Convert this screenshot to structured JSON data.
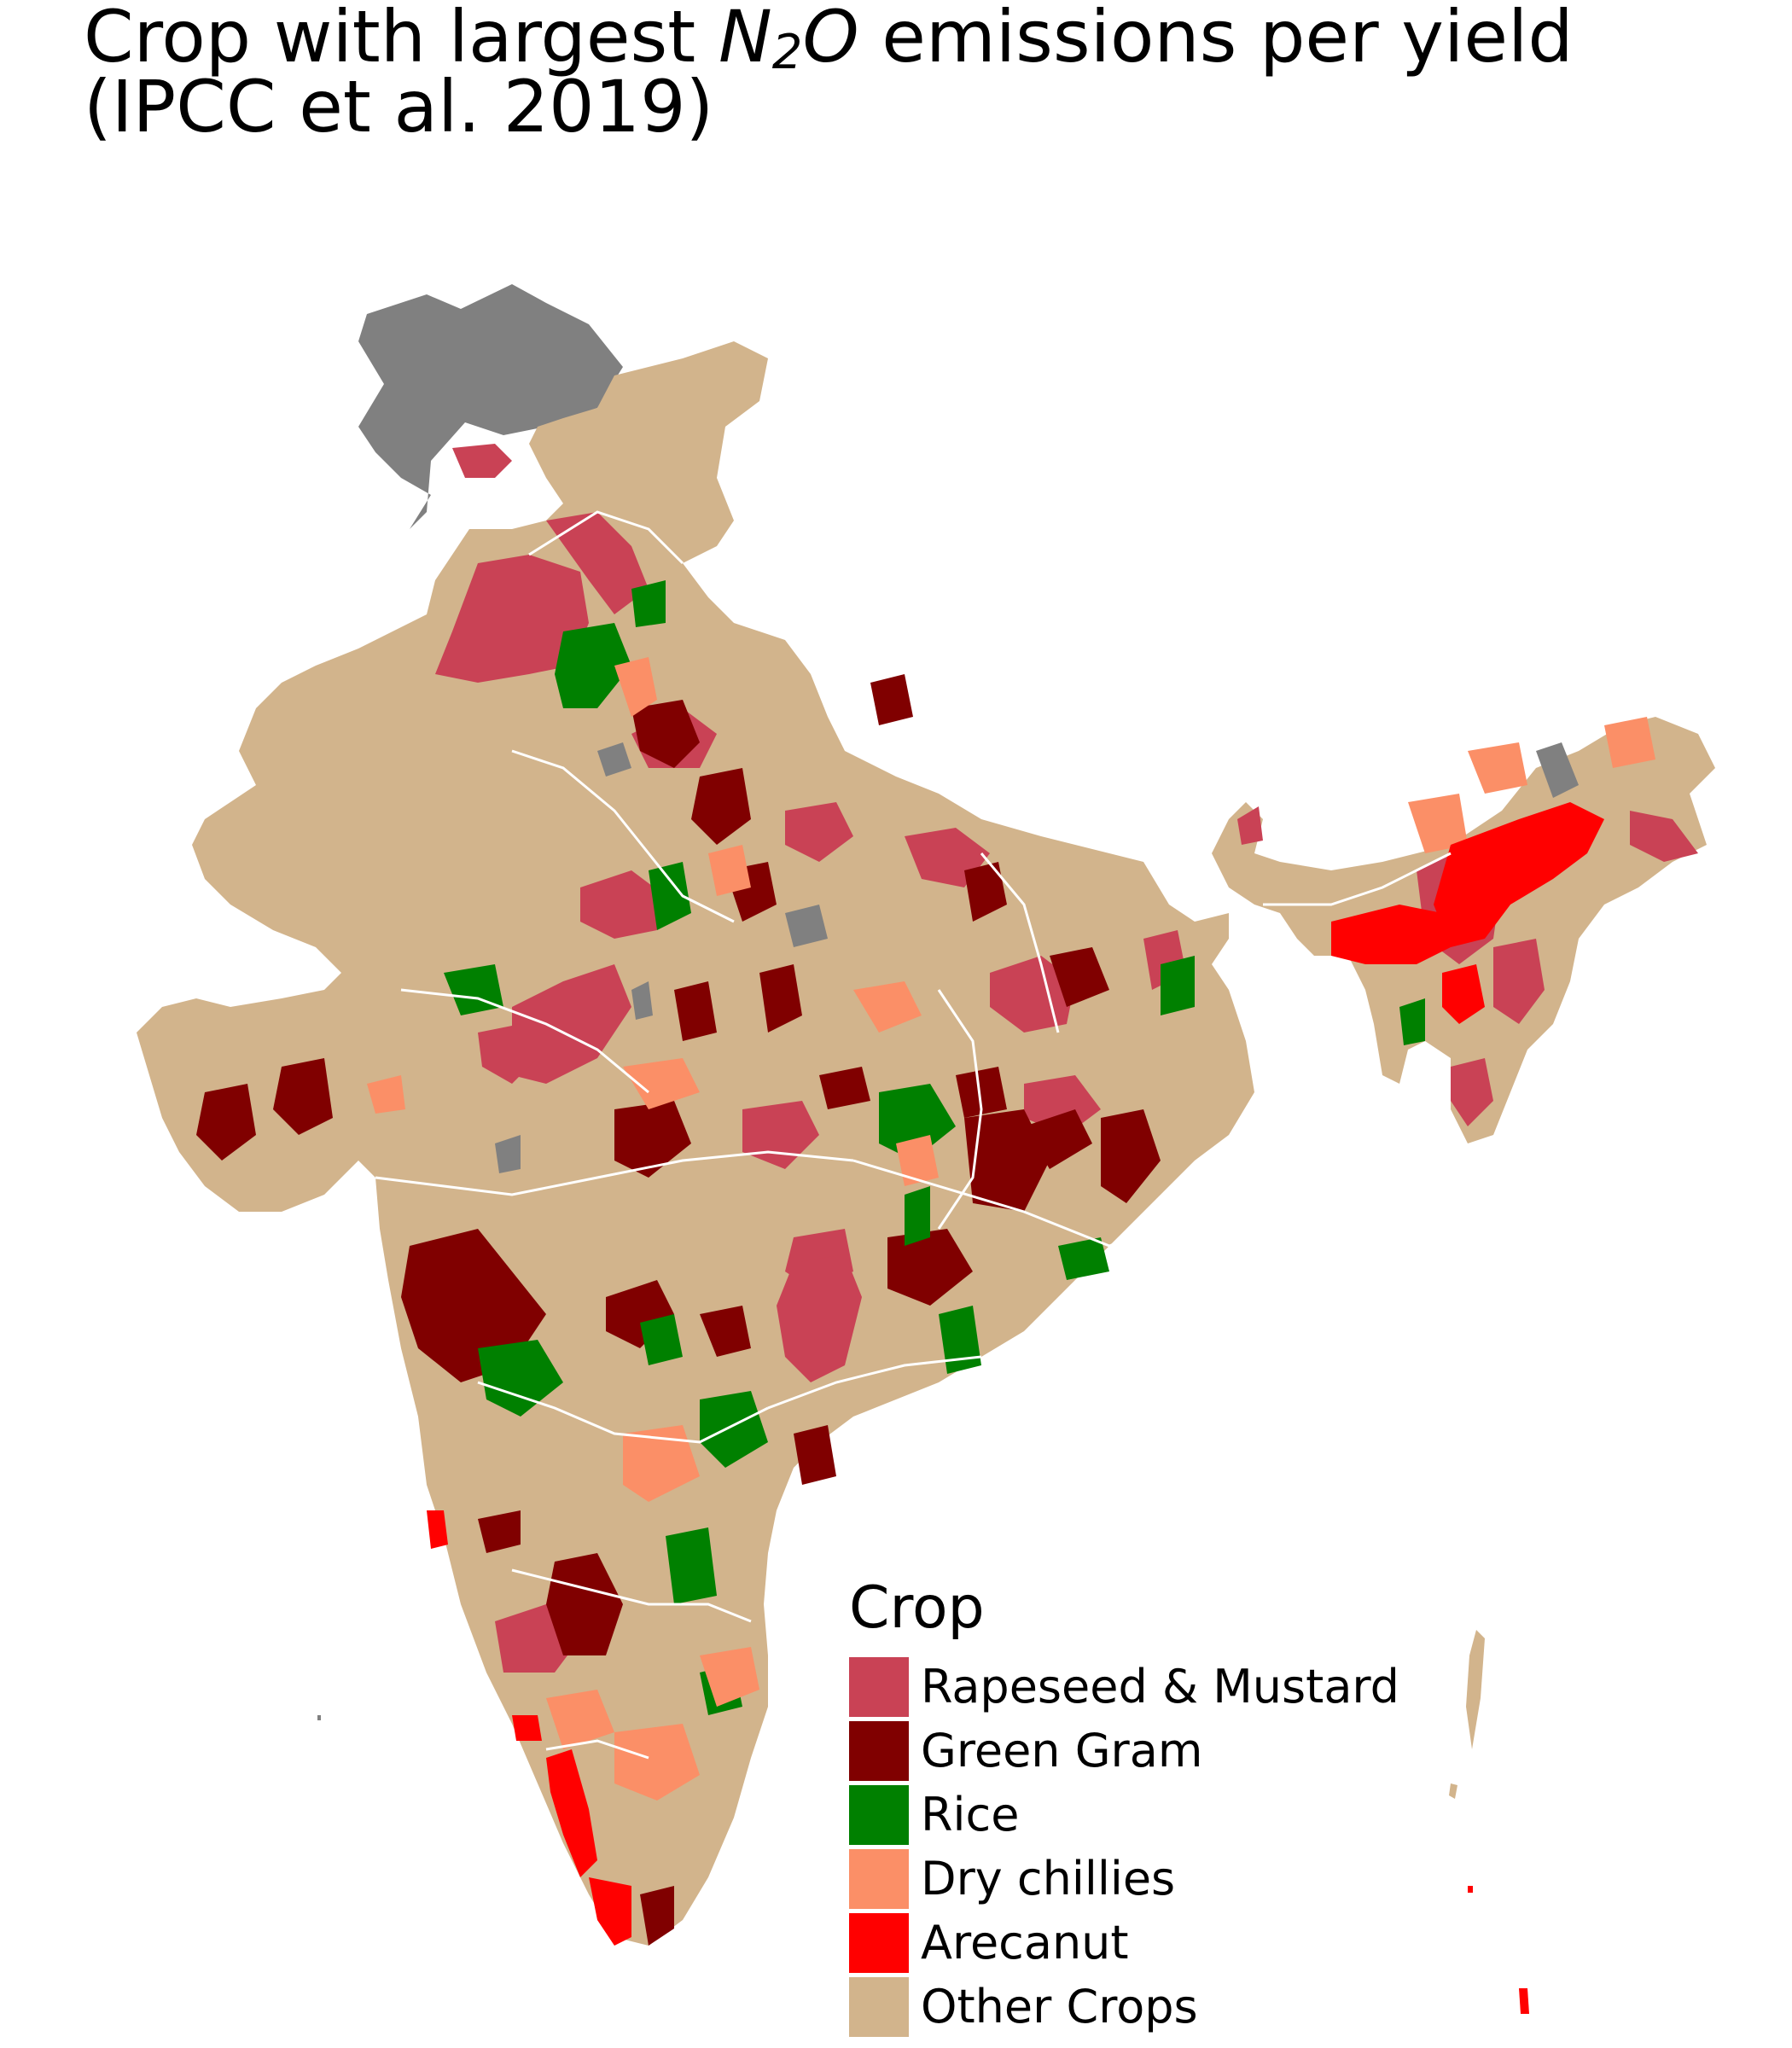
{
  "title": {
    "line1_prefix": "Crop with largest ",
    "formula_base": "N",
    "formula_sub": "2",
    "formula_tail": "O",
    "line1_suffix": " emissions per yield",
    "line2": "(IPCC et al. 2019)"
  },
  "legend": {
    "title": "Crop",
    "items": [
      {
        "label": "Rapeseed & Mustard",
        "color": "#c94255"
      },
      {
        "label": "Green Gram",
        "color": "#800000"
      },
      {
        "label": "Rice",
        "color": "#008000"
      },
      {
        "label": "Dry chillies",
        "color": "#fb8f67"
      },
      {
        "label": "Arecanut",
        "color": "#ff0000"
      },
      {
        "label": "Other Crops",
        "color": "#d2b48c"
      }
    ]
  },
  "map": {
    "no_data_color": "#808080",
    "base_color": "#d2b48c",
    "border_color": "#ffffff"
  }
}
